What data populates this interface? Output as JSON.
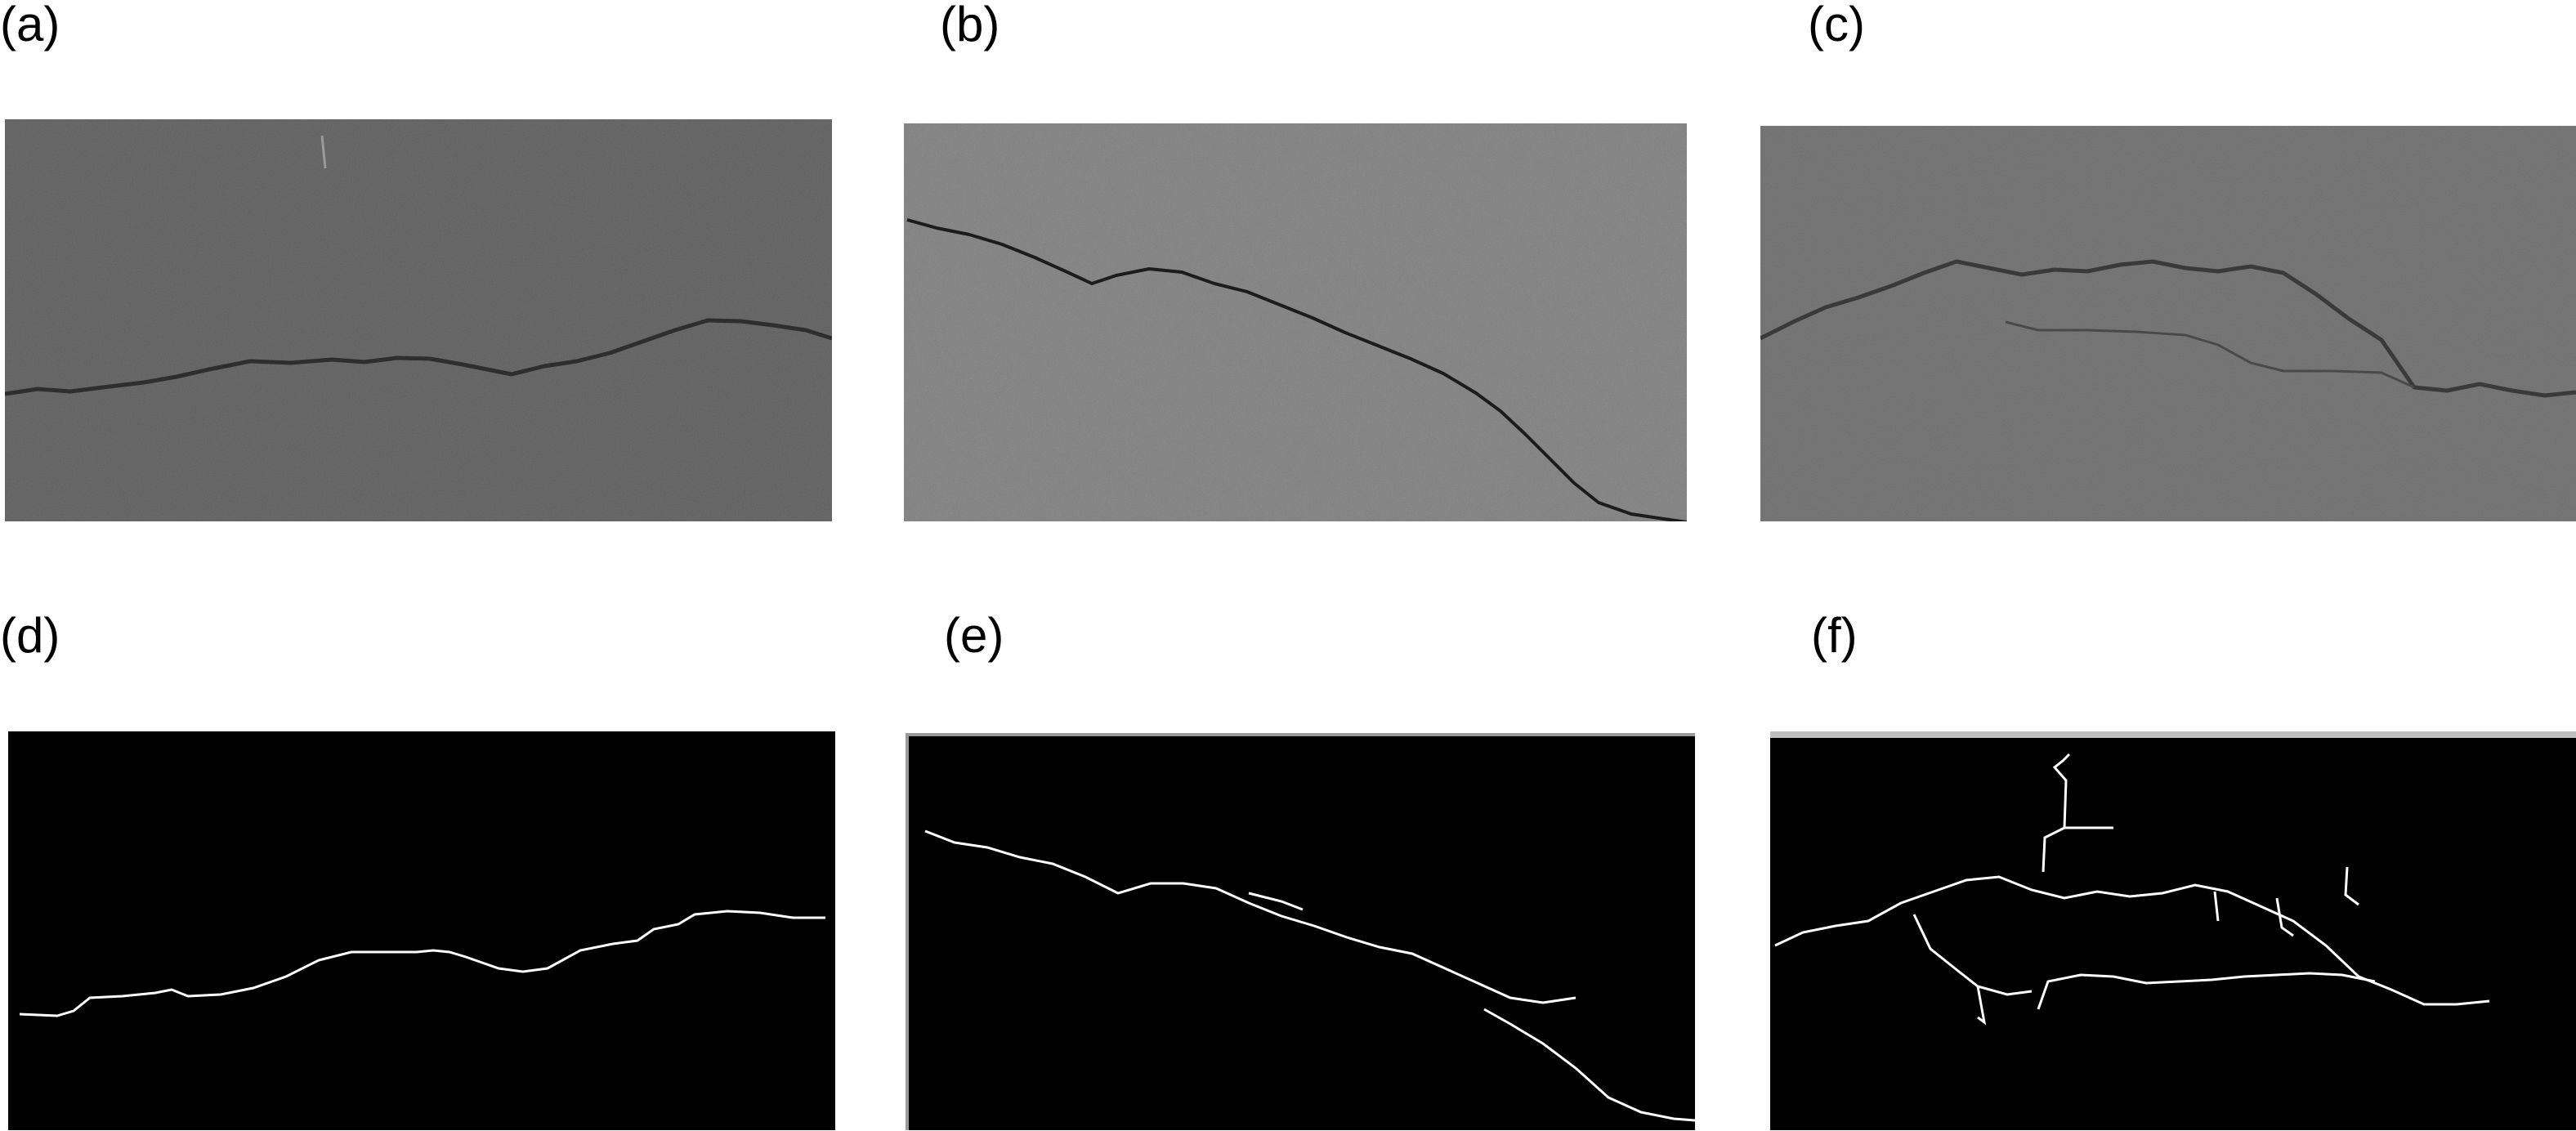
{
  "figure": {
    "panels": [
      {
        "id": "a",
        "label": "(a)",
        "kind": "pavement-photo"
      },
      {
        "id": "b",
        "label": "(b)",
        "kind": "pavement-photo"
      },
      {
        "id": "c",
        "label": "(c)",
        "kind": "pavement-photo"
      },
      {
        "id": "d",
        "label": "(d)",
        "kind": "crack-mask"
      },
      {
        "id": "e",
        "label": "(e)",
        "kind": "crack-mask"
      },
      {
        "id": "f",
        "label": "(f)",
        "kind": "crack-mask"
      }
    ]
  }
}
